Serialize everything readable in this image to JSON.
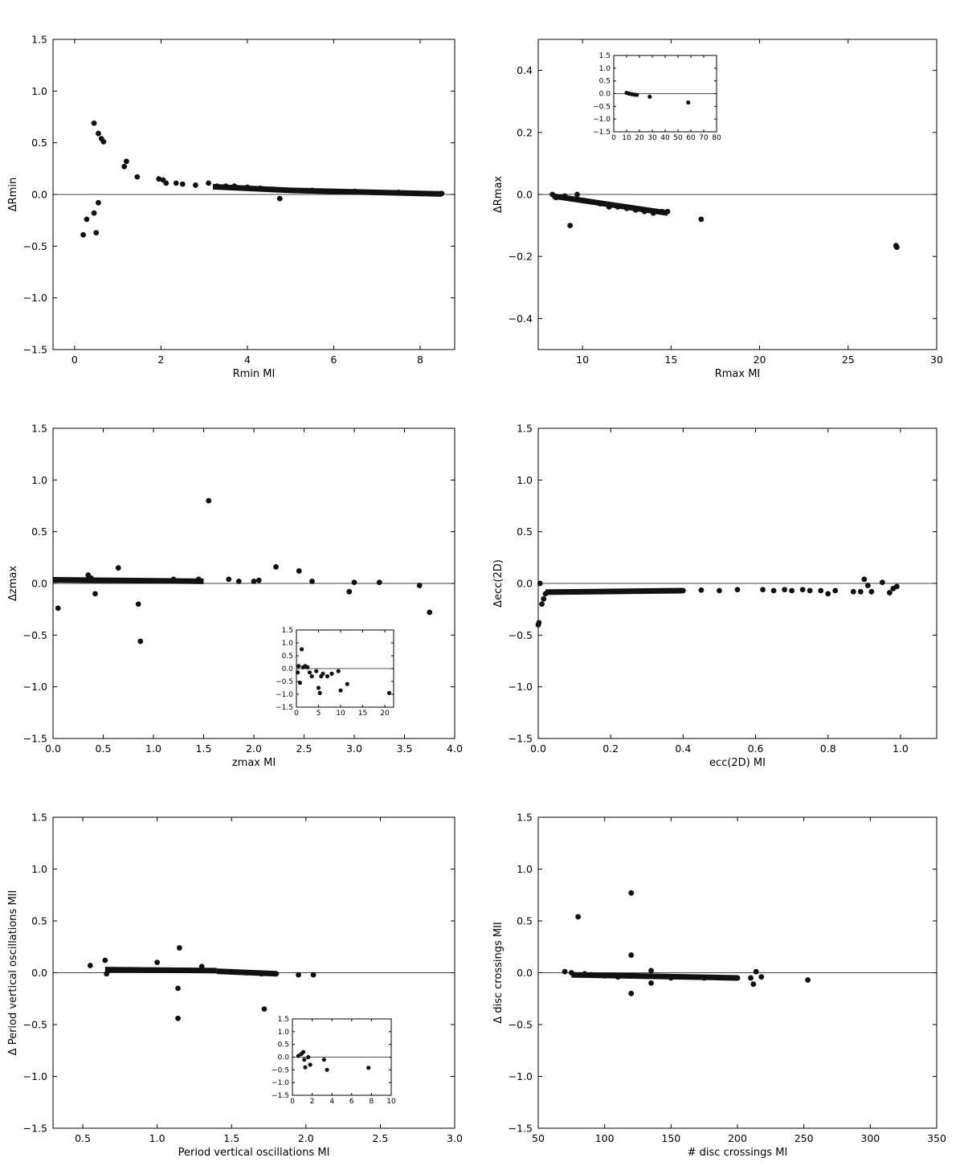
{
  "chart_data": [
    {
      "id": "rmin",
      "type": "scatter",
      "xlabel": "Rmin MI",
      "ylabel": "ΔRmin",
      "xlim": [
        -0.5,
        8.8
      ],
      "ylim": [
        -1.5,
        1.5
      ],
      "xticks": [
        "0",
        "2",
        "4",
        "6",
        "8"
      ],
      "yticks": [
        "−1.5",
        "−1.0",
        "−0.5",
        "0.0",
        "0.5",
        "1.0",
        "1.5"
      ],
      "reference_line": 0,
      "points": [
        [
          0.2,
          -0.39
        ],
        [
          0.28,
          -0.24
        ],
        [
          0.45,
          -0.18
        ],
        [
          0.5,
          -0.37
        ],
        [
          0.55,
          -0.08
        ],
        [
          0.45,
          0.69
        ],
        [
          0.55,
          0.59
        ],
        [
          0.62,
          0.54
        ],
        [
          0.67,
          0.51
        ],
        [
          1.15,
          0.27
        ],
        [
          1.2,
          0.32
        ],
        [
          1.45,
          0.17
        ],
        [
          1.95,
          0.15
        ],
        [
          2.05,
          0.14
        ],
        [
          2.12,
          0.11
        ],
        [
          2.35,
          0.11
        ],
        [
          2.5,
          0.1
        ],
        [
          2.8,
          0.09
        ],
        [
          3.1,
          0.11
        ],
        [
          3.3,
          0.08
        ],
        [
          3.5,
          0.08
        ],
        [
          3.7,
          0.08
        ],
        [
          4.0,
          0.07
        ],
        [
          4.3,
          0.06
        ],
        [
          4.6,
          0.05
        ],
        [
          4.75,
          -0.04
        ],
        [
          5.0,
          0.04
        ],
        [
          5.5,
          0.04
        ],
        [
          6.0,
          0.03
        ],
        [
          6.5,
          0.03
        ],
        [
          7.0,
          0.02
        ],
        [
          7.5,
          0.02
        ],
        [
          8.0,
          0.01
        ],
        [
          8.5,
          0.01
        ]
      ],
      "bands": [
        {
          "x0": 3.2,
          "x1": 5.0,
          "y0": 0.075,
          "y1": 0.04
        },
        {
          "x0": 5.0,
          "x1": 8.5,
          "y0": 0.04,
          "y1": 0.005
        }
      ]
    },
    {
      "id": "rmax",
      "type": "scatter",
      "xlabel": "Rmax MI",
      "ylabel": "ΔRmax",
      "xlim": [
        7.5,
        30
      ],
      "ylim": [
        -0.5,
        0.5
      ],
      "xticks": [
        "10",
        "15",
        "20",
        "25",
        "30"
      ],
      "yticks": [
        "−0.4",
        "−0.2",
        "0.0",
        "0.2",
        "0.4"
      ],
      "reference_line": 0,
      "points": [
        [
          8.3,
          0.0
        ],
        [
          8.5,
          -0.01
        ],
        [
          9.0,
          -0.005
        ],
        [
          9.3,
          -0.1
        ],
        [
          9.7,
          0.0
        ],
        [
          10.1,
          -0.02
        ],
        [
          11.0,
          -0.03
        ],
        [
          11.5,
          -0.04
        ],
        [
          12.0,
          -0.04
        ],
        [
          12.5,
          -0.045
        ],
        [
          13.0,
          -0.05
        ],
        [
          13.5,
          -0.055
        ],
        [
          14.0,
          -0.06
        ],
        [
          14.5,
          -0.055
        ],
        [
          14.8,
          -0.055
        ],
        [
          16.7,
          -0.08
        ],
        [
          27.7,
          -0.165
        ],
        [
          27.75,
          -0.17
        ]
      ],
      "bands": [
        {
          "x0": 8.3,
          "x1": 14.8,
          "y0": -0.005,
          "y1": -0.06
        }
      ],
      "inset": {
        "xlim": [
          0,
          80
        ],
        "ylim": [
          -1.5,
          1.5
        ],
        "xticks": [
          "0",
          "10",
          "20",
          "30",
          "40",
          "50",
          "60",
          "70",
          "80"
        ],
        "yticks": [
          "−1.5",
          "−1.0",
          "−0.5",
          "0.0",
          "0.5",
          "1.0",
          "1.5"
        ],
        "points": [
          [
            10,
            0.03
          ],
          [
            12,
            0.0
          ],
          [
            14,
            -0.02
          ],
          [
            16,
            -0.04
          ],
          [
            18,
            -0.05
          ],
          [
            28,
            -0.12
          ],
          [
            58,
            -0.35
          ]
        ]
      }
    },
    {
      "id": "zmax",
      "type": "scatter",
      "xlabel": "zmax MI",
      "ylabel": "Δzmax",
      "xlim": [
        0,
        4.0
      ],
      "ylim": [
        -1.5,
        1.5
      ],
      "xticks": [
        "0.0",
        "0.5",
        "1.0",
        "1.5",
        "2.0",
        "2.5",
        "3.0",
        "3.5",
        "4.0"
      ],
      "yticks": [
        "−1.5",
        "−1.0",
        "−0.5",
        "0.0",
        "0.5",
        "1.0",
        "1.5"
      ],
      "reference_line": 0,
      "points": [
        [
          0.05,
          -0.24
        ],
        [
          0.35,
          0.08
        ],
        [
          0.38,
          0.05
        ],
        [
          0.42,
          -0.1
        ],
        [
          0.65,
          0.15
        ],
        [
          0.85,
          -0.2
        ],
        [
          0.87,
          -0.56
        ],
        [
          1.2,
          0.04
        ],
        [
          1.45,
          0.04
        ],
        [
          1.55,
          0.8
        ],
        [
          1.75,
          0.04
        ],
        [
          1.85,
          0.02
        ],
        [
          2.0,
          0.02
        ],
        [
          2.05,
          0.03
        ],
        [
          2.22,
          0.16
        ],
        [
          2.45,
          0.12
        ],
        [
          2.58,
          0.02
        ],
        [
          2.95,
          -0.08
        ],
        [
          3.0,
          0.01
        ],
        [
          3.25,
          0.01
        ],
        [
          3.65,
          -0.02
        ],
        [
          3.75,
          -0.28
        ]
      ],
      "bands": [
        {
          "x0": 0.0,
          "x1": 1.5,
          "y0": 0.035,
          "y1": 0.02
        }
      ],
      "inset": {
        "xlim": [
          0,
          22
        ],
        "ylim": [
          -1.5,
          1.5
        ],
        "xticks": [
          "0",
          "5",
          "10",
          "15",
          "20"
        ],
        "yticks": [
          "−1.5",
          "−1.0",
          "−0.5",
          "0.0",
          "0.5",
          "1.0",
          "1.5"
        ],
        "points": [
          [
            0.3,
            -0.15
          ],
          [
            0.5,
            0.1
          ],
          [
            0.8,
            -0.55
          ],
          [
            1.2,
            0.75
          ],
          [
            1.5,
            0.05
          ],
          [
            2.0,
            0.1
          ],
          [
            2.5,
            0.05
          ],
          [
            3.0,
            -0.15
          ],
          [
            3.5,
            -0.3
          ],
          [
            4.5,
            -0.1
          ],
          [
            5.0,
            -0.75
          ],
          [
            5.3,
            -0.95
          ],
          [
            5.6,
            -0.3
          ],
          [
            6.0,
            -0.2
          ],
          [
            7.0,
            -0.3
          ],
          [
            8.0,
            -0.2
          ],
          [
            9.5,
            -0.1
          ],
          [
            10.0,
            -0.85
          ],
          [
            11.5,
            -0.6
          ],
          [
            21.0,
            -0.95
          ]
        ]
      }
    },
    {
      "id": "ecc",
      "type": "scatter",
      "xlabel": "ecc(2D) MI",
      "ylabel": "Δecc(2D)",
      "xlim": [
        0,
        1.1
      ],
      "ylim": [
        -1.5,
        1.5
      ],
      "xticks": [
        "0.0",
        "0.2",
        "0.4",
        "0.6",
        "0.8",
        "1.0"
      ],
      "yticks": [
        "−1.5",
        "−1.0",
        "−0.5",
        "0.0",
        "0.5",
        "1.0",
        "1.5"
      ],
      "reference_line": 0,
      "points": [
        [
          0.0,
          -0.4
        ],
        [
          0.002,
          -0.38
        ],
        [
          0.005,
          0.0
        ],
        [
          0.01,
          -0.2
        ],
        [
          0.015,
          -0.15
        ],
        [
          0.02,
          -0.1
        ],
        [
          0.4,
          -0.07
        ],
        [
          0.45,
          -0.065
        ],
        [
          0.5,
          -0.07
        ],
        [
          0.55,
          -0.06
        ],
        [
          0.62,
          -0.06
        ],
        [
          0.65,
          -0.07
        ],
        [
          0.68,
          -0.06
        ],
        [
          0.7,
          -0.07
        ],
        [
          0.73,
          -0.06
        ],
        [
          0.75,
          -0.07
        ],
        [
          0.78,
          -0.07
        ],
        [
          0.8,
          -0.1
        ],
        [
          0.82,
          -0.07
        ],
        [
          0.87,
          -0.08
        ],
        [
          0.89,
          -0.08
        ],
        [
          0.9,
          0.04
        ],
        [
          0.91,
          -0.02
        ],
        [
          0.92,
          -0.08
        ],
        [
          0.95,
          0.01
        ],
        [
          0.97,
          -0.09
        ],
        [
          0.98,
          -0.05
        ],
        [
          0.99,
          -0.03
        ]
      ],
      "bands": [
        {
          "x0": 0.02,
          "x1": 0.4,
          "y0": -0.085,
          "y1": -0.07
        }
      ]
    },
    {
      "id": "period",
      "type": "scatter",
      "xlabel": "Period vertical oscillations MI",
      "ylabel": "Δ Period vertical oscillations MII",
      "xlim": [
        0.3,
        3.0
      ],
      "ylim": [
        -1.5,
        1.5
      ],
      "xticks": [
        "0.5",
        "1.0",
        "1.5",
        "2.0",
        "2.5",
        "3.0"
      ],
      "yticks": [
        "−1.5",
        "−1.0",
        "−0.5",
        "0.0",
        "0.5",
        "1.0",
        "1.5"
      ],
      "reference_line": 0,
      "points": [
        [
          0.55,
          0.07
        ],
        [
          0.65,
          0.12
        ],
        [
          0.66,
          -0.01
        ],
        [
          1.0,
          0.1
        ],
        [
          1.15,
          0.24
        ],
        [
          1.14,
          -0.15
        ],
        [
          1.14,
          -0.44
        ],
        [
          1.3,
          0.06
        ],
        [
          1.5,
          0.01
        ],
        [
          1.6,
          0.0
        ],
        [
          1.7,
          -0.01
        ],
        [
          1.72,
          -0.35
        ],
        [
          1.8,
          -0.01
        ],
        [
          1.95,
          -0.02
        ],
        [
          2.05,
          -0.02
        ]
      ],
      "bands": [
        {
          "x0": 0.65,
          "x1": 1.4,
          "y0": 0.03,
          "y1": 0.02
        },
        {
          "x0": 1.4,
          "x1": 1.8,
          "y0": 0.015,
          "y1": -0.01
        }
      ],
      "inset": {
        "xlim": [
          0,
          10
        ],
        "ylim": [
          -1.5,
          1.5
        ],
        "xticks": [
          "0",
          "2",
          "4",
          "6",
          "8",
          "10"
        ],
        "yticks": [
          "−1.5",
          "−1.0",
          "−0.5",
          "0.0",
          "0.5",
          "1.0",
          "1.5"
        ],
        "points": [
          [
            0.6,
            0.05
          ],
          [
            0.9,
            0.12
          ],
          [
            1.1,
            0.2
          ],
          [
            1.2,
            -0.1
          ],
          [
            1.3,
            -0.4
          ],
          [
            1.6,
            0.0
          ],
          [
            1.8,
            -0.3
          ],
          [
            3.2,
            -0.1
          ],
          [
            3.5,
            -0.5
          ],
          [
            7.7,
            -0.42
          ]
        ]
      }
    },
    {
      "id": "crossings",
      "type": "scatter",
      "xlabel": "# disc crossings MI",
      "ylabel": "Δ disc crossings MII",
      "xlim": [
        50,
        350
      ],
      "ylim": [
        -1.5,
        1.5
      ],
      "xticks": [
        "50",
        "100",
        "150",
        "200",
        "250",
        "300",
        "350"
      ],
      "yticks": [
        "−1.5",
        "−1.0",
        "−0.5",
        "0.0",
        "0.5",
        "1.0",
        "1.5"
      ],
      "reference_line": 0,
      "points": [
        [
          70,
          0.01
        ],
        [
          75,
          0.0
        ],
        [
          80,
          0.54
        ],
        [
          85,
          -0.01
        ],
        [
          90,
          -0.02
        ],
        [
          100,
          -0.03
        ],
        [
          110,
          -0.04
        ],
        [
          120,
          0.77
        ],
        [
          120,
          0.17
        ],
        [
          120,
          -0.2
        ],
        [
          135,
          0.02
        ],
        [
          135,
          -0.1
        ],
        [
          150,
          -0.05
        ],
        [
          175,
          -0.05
        ],
        [
          200,
          -0.05
        ],
        [
          210,
          -0.05
        ],
        [
          212,
          -0.11
        ],
        [
          214,
          0.01
        ],
        [
          218,
          -0.04
        ],
        [
          253,
          -0.07
        ]
      ],
      "bands": [
        {
          "x0": 75,
          "x1": 200,
          "y0": -0.02,
          "y1": -0.05
        }
      ]
    }
  ]
}
